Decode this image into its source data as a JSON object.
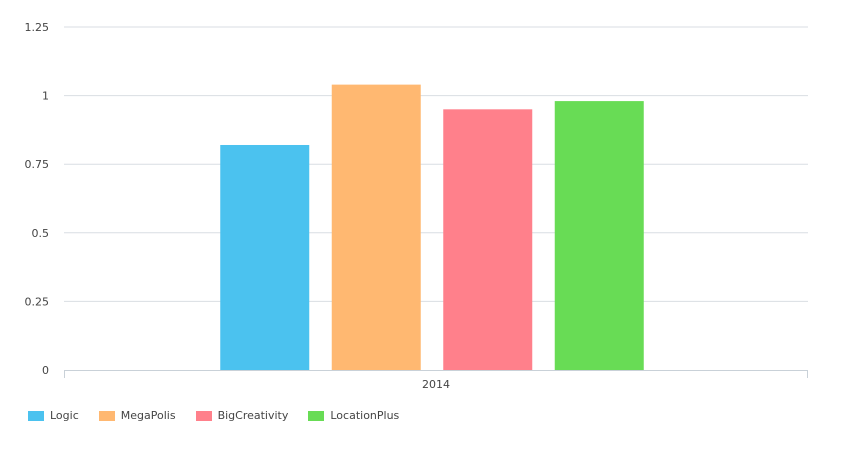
{
  "chart_data": {
    "type": "bar",
    "title": "",
    "xlabel": "",
    "ylabel": "",
    "categories": [
      "2014"
    ],
    "ylim": [
      0,
      1.25
    ],
    "yticks": [
      0,
      0.25,
      0.5,
      0.75,
      1,
      1.25
    ],
    "ytick_labels": [
      "0",
      "0.25",
      "0.5",
      "0.75",
      "1",
      "1.25"
    ],
    "grid": true,
    "legend_position": "bottom-left",
    "series": [
      {
        "name": "Logic",
        "values": [
          0.82
        ],
        "color": "#4bc2ef"
      },
      {
        "name": "MegaPolis",
        "values": [
          1.04
        ],
        "color": "#ffb871"
      },
      {
        "name": "BigCreativity",
        "values": [
          0.95
        ],
        "color": "#ff808b"
      },
      {
        "name": "LocationPlus",
        "values": [
          0.98
        ],
        "color": "#68dc55"
      }
    ]
  }
}
